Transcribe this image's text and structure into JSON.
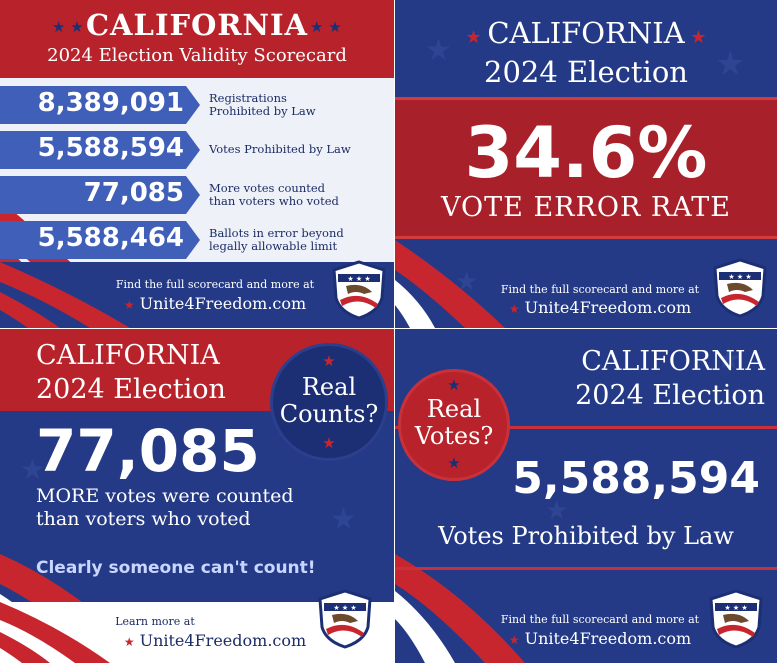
{
  "colors": {
    "red": "#b8232b",
    "navy": "#243a86",
    "blue_arrow": "#3f5fb8",
    "white": "#ffffff"
  },
  "panel_scorecard": {
    "title": "CALIFORNIA",
    "subtitle": "2024 Election Validity Scorecard",
    "rows": [
      {
        "number": "8,389,091",
        "label_line1": "Registrations",
        "label_line2": "Prohibited by Law"
      },
      {
        "number": "5,588,594",
        "label_line1": "Votes Prohibited by Law",
        "label_line2": ""
      },
      {
        "number": "77,085",
        "label_line1": "More votes counted",
        "label_line2": "than voters who voted"
      },
      {
        "number": "5,588,464",
        "label_line1": "Ballots in error beyond",
        "label_line2": "legally allowable limit"
      }
    ],
    "footer_small": "Find the full scorecard and more at",
    "footer_site": "Unite4Freedom.com"
  },
  "panel_error_rate": {
    "title_line1": "CALIFORNIA",
    "title_line2": "2024 Election",
    "percent": "34.6%",
    "caption": "VOTE ERROR RATE",
    "footer_small": "Find the full scorecard and more at",
    "footer_site": "Unite4Freedom.com"
  },
  "panel_counts": {
    "title_line1": "CALIFORNIA",
    "title_line2": "2024 Election",
    "circle_line1": "Real",
    "circle_line2": "Counts?",
    "number": "77,085",
    "desc_line1": "MORE votes were counted",
    "desc_line2": "than voters who voted",
    "quip": "Clearly someone can't count!",
    "footer_small": "Learn more at",
    "footer_site": "Unite4Freedom.com"
  },
  "panel_votes": {
    "title_line1": "CALIFORNIA",
    "title_line2": "2024 Election",
    "circle_line1": "Real",
    "circle_line2": "Votes?",
    "number": "5,588,594",
    "caption": "Votes Prohibited by Law",
    "footer_small": "Find the full scorecard and more at",
    "footer_site": "Unite4Freedom.com"
  },
  "icons": [
    "star-icon",
    "eagle-shield-icon"
  ]
}
